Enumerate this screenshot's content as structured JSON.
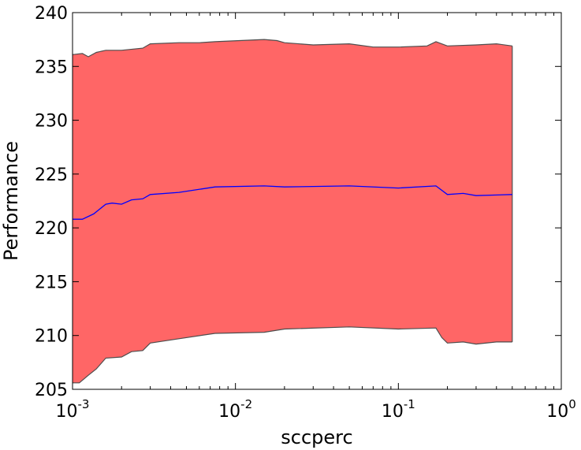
{
  "chart_data": {
    "type": "area",
    "title": "",
    "xlabel": "sccperc",
    "ylabel": "Performance",
    "xscale": "log",
    "xlim": [
      0.001,
      1
    ],
    "ylim": [
      205,
      240
    ],
    "grid": false,
    "x_tick_labels": [
      {
        "value": 0.001,
        "base": "10",
        "exp": "-3"
      },
      {
        "value": 0.01,
        "base": "10",
        "exp": "-2"
      },
      {
        "value": 0.1,
        "base": "10",
        "exp": "-1"
      },
      {
        "value": 1,
        "base": "10",
        "exp": "0"
      }
    ],
    "y_tick_labels": [
      "205",
      "210",
      "215",
      "220",
      "225",
      "230",
      "235",
      "240"
    ],
    "y_tick_values": [
      205,
      210,
      215,
      220,
      225,
      230,
      235,
      240
    ],
    "colors": {
      "band_fill": "#ff6666",
      "band_edge": "#4d4d4d",
      "mean_line": "#0000ff"
    },
    "series": [
      {
        "role": "mean",
        "x": [
          0.001,
          0.00115,
          0.00135,
          0.0016,
          0.00175,
          0.002,
          0.0023,
          0.0027,
          0.003,
          0.0045,
          0.0075,
          0.015,
          0.02,
          0.05,
          0.1,
          0.17,
          0.2,
          0.25,
          0.3,
          0.5
        ],
        "y": [
          220.8,
          220.8,
          221.3,
          222.2,
          222.3,
          222.2,
          222.6,
          222.7,
          223.1,
          223.3,
          223.8,
          223.9,
          223.8,
          223.9,
          223.7,
          223.9,
          223.1,
          223.2,
          223.0,
          223.1
        ]
      },
      {
        "role": "upper",
        "x": [
          0.001,
          0.00115,
          0.00125,
          0.0014,
          0.0016,
          0.002,
          0.0027,
          0.003,
          0.0045,
          0.006,
          0.0075,
          0.015,
          0.018,
          0.02,
          0.03,
          0.05,
          0.07,
          0.1,
          0.15,
          0.17,
          0.2,
          0.3,
          0.4,
          0.5
        ],
        "y": [
          236.1,
          236.2,
          235.9,
          236.3,
          236.5,
          236.5,
          236.7,
          237.1,
          237.2,
          237.2,
          237.3,
          237.5,
          237.4,
          237.2,
          237.0,
          237.1,
          236.8,
          236.8,
          236.9,
          237.3,
          236.9,
          237.0,
          237.1,
          236.9
        ]
      },
      {
        "role": "lower",
        "x": [
          0.001,
          0.0011,
          0.00125,
          0.0014,
          0.0016,
          0.002,
          0.0023,
          0.0027,
          0.003,
          0.0045,
          0.0075,
          0.015,
          0.02,
          0.05,
          0.1,
          0.17,
          0.185,
          0.2,
          0.25,
          0.3,
          0.4,
          0.5
        ],
        "y": [
          205.6,
          205.6,
          206.3,
          206.9,
          207.9,
          208.0,
          208.5,
          208.6,
          209.3,
          209.7,
          210.2,
          210.3,
          210.6,
          210.8,
          210.6,
          210.7,
          209.8,
          209.3,
          209.4,
          209.2,
          209.4,
          209.4
        ]
      }
    ]
  }
}
